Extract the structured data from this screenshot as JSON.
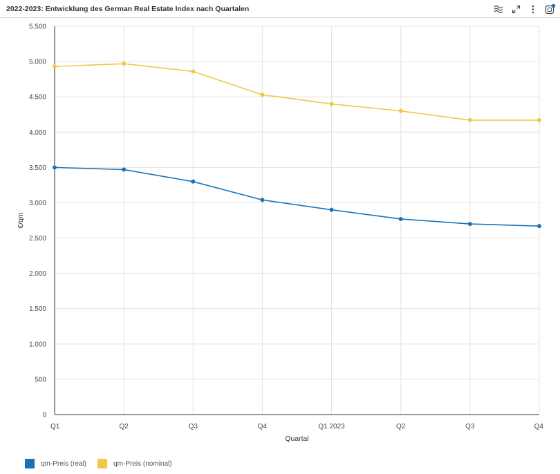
{
  "header": {
    "title": "2022-2023: Entwicklung des German Real Estate Index nach Quartalen",
    "icons": [
      "wave-icon",
      "expand-icon",
      "more-vertical-icon",
      "chart-settings-icon"
    ]
  },
  "colors": {
    "real": "#1a73b8",
    "nominal": "#f0c841",
    "grid": "#e3e3e3",
    "axis": "#333333",
    "badge": "#1a73b8"
  },
  "chart_data": {
    "type": "line",
    "xlabel": "Quartal",
    "ylabel": "€/qm",
    "categories": [
      "Q1",
      "Q2",
      "Q3",
      "Q4",
      "Q1 2023",
      "Q2",
      "Q3",
      "Q4"
    ],
    "ylim": [
      0,
      5500
    ],
    "yticks": [
      0,
      500,
      1000,
      1500,
      2000,
      2500,
      3000,
      3500,
      4000,
      4500,
      5000,
      5500
    ],
    "ytick_labels": [
      "0",
      "500",
      "1.000",
      "1.500",
      "2.000",
      "2.500",
      "3.000",
      "3.500",
      "4.000",
      "4.500",
      "5.000",
      "5.500"
    ],
    "grid": true,
    "legend_position": "bottom-left",
    "series": [
      {
        "name": "qm-Preis (real)",
        "color": "#1a73b8",
        "values": [
          3500,
          3470,
          3300,
          3040,
          2900,
          2770,
          2700,
          2670
        ]
      },
      {
        "name": "qm-Preis (nominal)",
        "color": "#f0c841",
        "values": [
          4930,
          4970,
          4860,
          4530,
          4400,
          4300,
          4170,
          4170
        ]
      }
    ]
  }
}
